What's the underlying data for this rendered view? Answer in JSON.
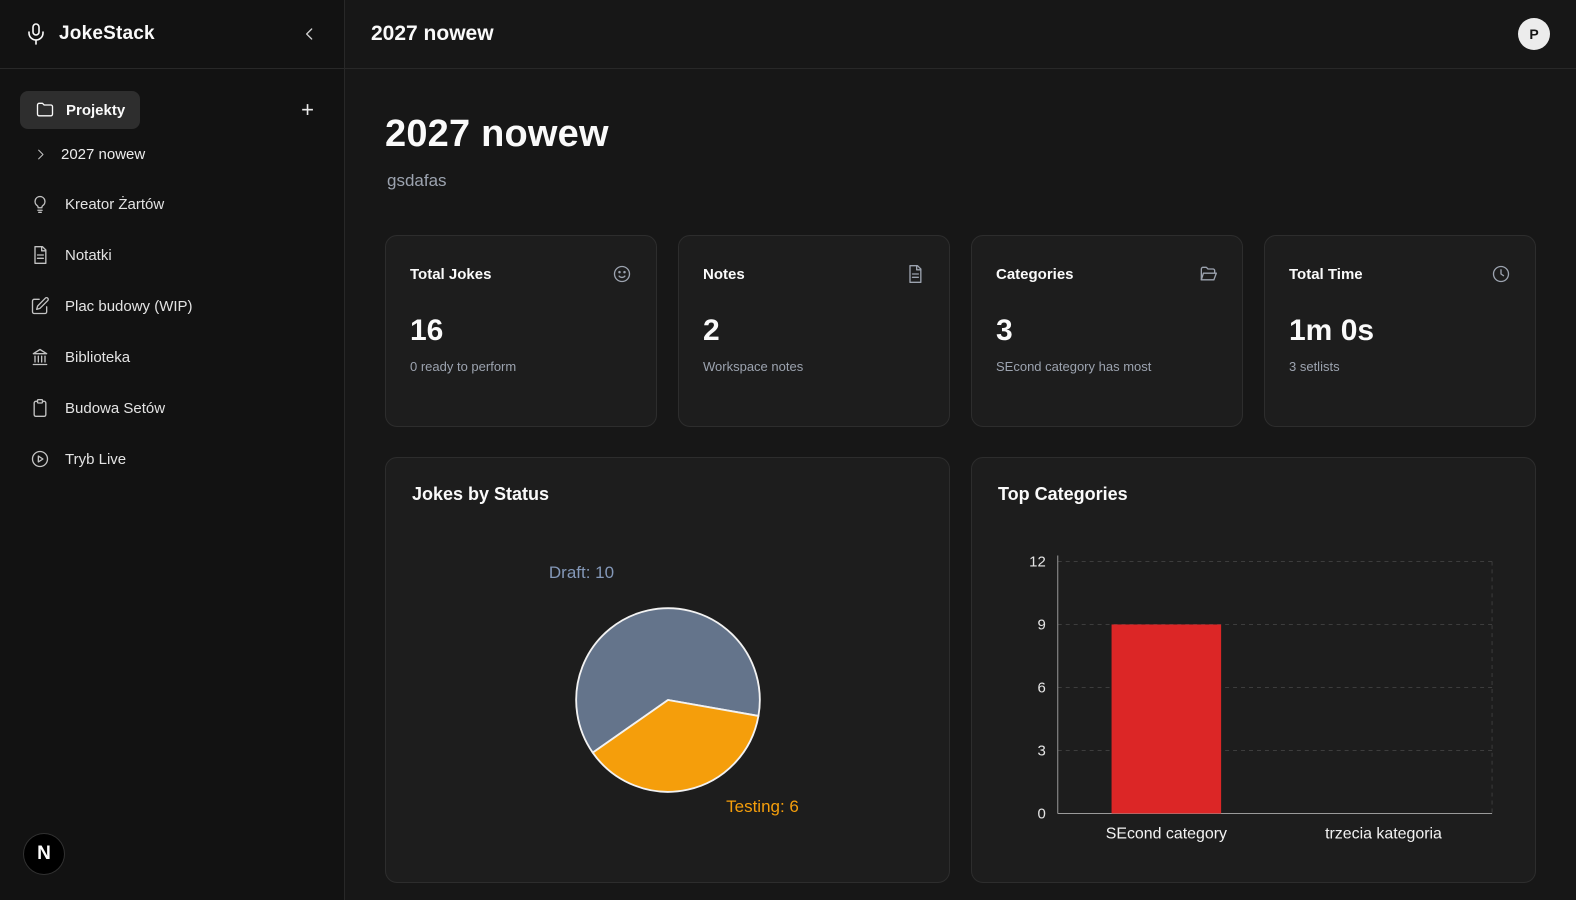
{
  "app": {
    "title": "JokeStack"
  },
  "sidebar": {
    "projects": {
      "label": "Projekty"
    },
    "active_project": "2027 nowew",
    "items": [
      {
        "label": "Kreator Żartów",
        "icon": "lightbulb-icon"
      },
      {
        "label": "Notatki",
        "icon": "note-icon"
      },
      {
        "label": "Plac budowy (WIP)",
        "icon": "edit-icon"
      },
      {
        "label": "Biblioteka",
        "icon": "library-icon"
      },
      {
        "label": "Budowa Setów",
        "icon": "clipboard-icon"
      },
      {
        "label": "Tryb Live",
        "icon": "play-circle-icon"
      }
    ],
    "dev_badge": "N"
  },
  "header": {
    "title": "2027 nowew",
    "avatar_initial": "P"
  },
  "page": {
    "title": "2027 nowew",
    "subtitle": "gsdafas"
  },
  "stats": [
    {
      "label": "Total Jokes",
      "value": "16",
      "sub": "0 ready to perform",
      "icon": "smiley-icon"
    },
    {
      "label": "Notes",
      "value": "2",
      "sub": "Workspace notes",
      "icon": "file-text-icon"
    },
    {
      "label": "Categories",
      "value": "3",
      "sub": "SEcond category has most",
      "icon": "folder-open-icon"
    },
    {
      "label": "Total Time",
      "value": "1m 0s",
      "sub": "3 setlists",
      "icon": "clock-icon"
    }
  ],
  "chart_data": [
    {
      "type": "pie",
      "title": "Jokes by Status",
      "slices": [
        {
          "label": "Draft",
          "value": 10,
          "color": "#64748b",
          "label_color": "#8498b8"
        },
        {
          "label": "Testing",
          "value": 6,
          "color": "#f59e0b",
          "label_color": "#f59e0b"
        }
      ],
      "start_angle": 235,
      "border_color": "#f2f2f2",
      "legend_position": "none"
    },
    {
      "type": "bar",
      "title": "Top Categories",
      "categories": [
        "SEcond category",
        "trzecia kategoria"
      ],
      "values": [
        9,
        0
      ],
      "bar_color": "#dc2626",
      "yticks": [
        0,
        3,
        6,
        9,
        12
      ],
      "ylim": [
        0,
        12
      ],
      "grid": "dashed",
      "tick_color": "#e5e5e5",
      "grid_color": "#3d3d3d",
      "axis_color": "#9a9a9a"
    }
  ]
}
